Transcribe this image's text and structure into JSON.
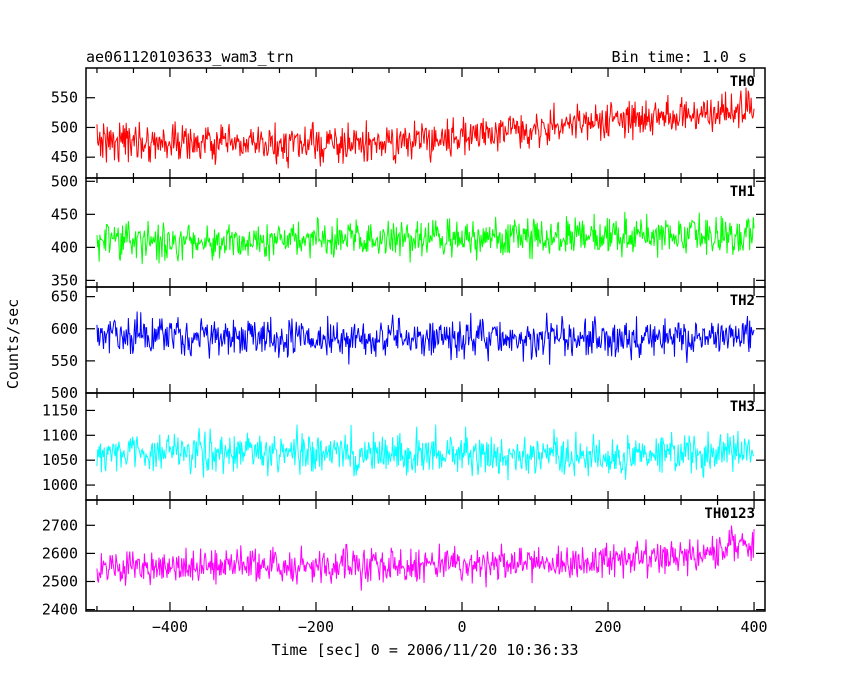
{
  "chart_data": {
    "type": "line",
    "title": "ae061120103633_wam3_trn",
    "bin_time_label": "Bin time: 1.0 s",
    "xlabel": "Time [sec] 0 = 2006/11/20 10:36:33",
    "ylabel": "Counts/sec",
    "xlim": [
      -515,
      415
    ],
    "x_ticks": [
      -400,
      -200,
      0,
      200,
      400
    ],
    "x_tick_labels": [
      "−400",
      "−200",
      "0",
      "200",
      "400"
    ],
    "x_range": [
      -500,
      400
    ],
    "bin_time": 1.0,
    "panels": [
      {
        "name": "TH0",
        "color": "#ff0000",
        "ylim": [
          415,
          600
        ],
        "y_ticks": [
          450,
          500,
          550
        ],
        "y_tick_labels": [
          "450",
          "500",
          "550"
        ],
        "trend": [
          [
            -500,
            480
          ],
          [
            -300,
            470
          ],
          [
            -100,
            472
          ],
          [
            100,
            500
          ],
          [
            300,
            520
          ],
          [
            400,
            530
          ]
        ],
        "noise": 25
      },
      {
        "name": "TH1",
        "color": "#00ff00",
        "ylim": [
          340,
          505
        ],
        "y_ticks": [
          350,
          400,
          450,
          500
        ],
        "y_tick_labels": [
          "350",
          "400",
          "450",
          "500"
        ],
        "trend": [
          [
            -500,
            410
          ],
          [
            0,
            412
          ],
          [
            400,
            420
          ]
        ],
        "noise": 22
      },
      {
        "name": "TH2",
        "color": "#0000ff",
        "ylim": [
          500,
          665
        ],
        "y_ticks": [
          500,
          550,
          600,
          650
        ],
        "y_tick_labels": [
          "500",
          "550",
          "600",
          "650"
        ],
        "trend": [
          [
            -500,
            588
          ],
          [
            0,
            585
          ],
          [
            200,
            583
          ],
          [
            400,
            590
          ]
        ],
        "noise": 24
      },
      {
        "name": "TH3",
        "color": "#00ffff",
        "ylim": [
          970,
          1185
        ],
        "y_ticks": [
          1000,
          1050,
          1100,
          1150
        ],
        "y_tick_labels": [
          "1000",
          "1050",
          "1100",
          "1150"
        ],
        "trend": [
          [
            -500,
            1068
          ],
          [
            0,
            1062
          ],
          [
            200,
            1055
          ],
          [
            400,
            1070
          ]
        ],
        "noise": 33
      },
      {
        "name": "TH0123",
        "color": "#ff00ff",
        "ylim": [
          2395,
          2790
        ],
        "y_ticks": [
          2400,
          2500,
          2600,
          2700
        ],
        "y_tick_labels": [
          "2400",
          "2500",
          "2600",
          "2700"
        ],
        "trend": [
          [
            -500,
            2545
          ],
          [
            -200,
            2555
          ],
          [
            100,
            2555
          ],
          [
            300,
            2590
          ],
          [
            400,
            2640
          ]
        ],
        "noise": 50
      }
    ]
  }
}
